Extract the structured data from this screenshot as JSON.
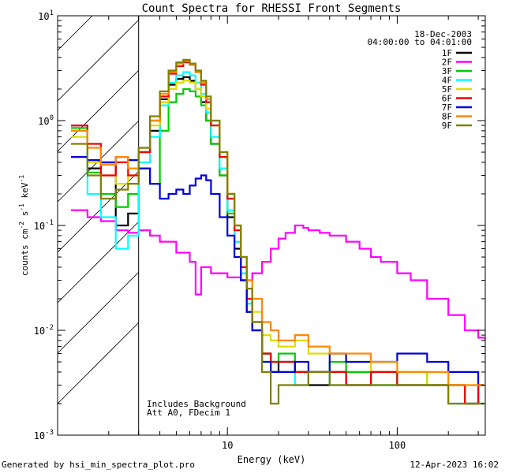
{
  "chart_data": {
    "type": "line",
    "title": "Count Spectra for RHESSI Front Segments",
    "xlabel": "Energy (keV)",
    "ylabel": "counts cm-2 s-1 keV-1",
    "xscale": "log",
    "yscale": "log",
    "xlim": [
      1,
      330
    ],
    "ylim": [
      0.001,
      10
    ],
    "x_ticks": [
      {
        "label": "10",
        "value": 10
      },
      {
        "label": "100",
        "value": 100
      }
    ],
    "y_ticks": [
      {
        "base": "10",
        "exp": "1",
        "value": 10
      },
      {
        "base": "10",
        "exp": "0",
        "value": 1
      },
      {
        "base": "10",
        "exp": "-1",
        "value": 0.1
      },
      {
        "base": "10",
        "exp": "-2",
        "value": 0.01
      },
      {
        "base": "10",
        "exp": "-3",
        "value": 0.001
      }
    ],
    "date": "18-Dec-2003",
    "time_range": "04:00:00 to 04:01:00",
    "annotation_line1": "Includes Background",
    "annotation_line2": "Att A0, FDecim 1",
    "excluded_region_keV": [
      1,
      3
    ],
    "series": [
      {
        "name": "1F",
        "color": "#000000",
        "x": [
          1.2,
          1.5,
          1.8,
          2.2,
          2.6,
          3,
          3.5,
          4,
          4.5,
          5,
          5.5,
          6,
          6.5,
          7,
          7.5,
          8,
          9,
          10,
          11,
          12,
          13,
          14,
          16,
          18,
          20,
          25,
          30,
          40,
          50,
          70,
          100,
          150,
          200,
          250,
          300
        ],
        "values": [
          0.9,
          0.35,
          0.38,
          0.1,
          0.13,
          0.5,
          0.8,
          1.6,
          2.2,
          2.5,
          2.6,
          2.4,
          2.0,
          1.5,
          1.0,
          0.6,
          0.3,
          0.12,
          0.06,
          0.03,
          0.015,
          0.01,
          0.006,
          0.004,
          0.005,
          0.004,
          0.003,
          0.004,
          0.003,
          0.004,
          0.003,
          0.003,
          0.003,
          0.002,
          0.003
        ]
      },
      {
        "name": "2F",
        "color": "#ff00ff",
        "x": [
          1.2,
          1.5,
          1.8,
          2.2,
          2.6,
          3,
          3.5,
          4,
          5,
          6,
          6.5,
          7,
          8,
          10,
          12,
          14,
          16,
          18,
          20,
          22,
          25,
          28,
          30,
          35,
          40,
          50,
          60,
          70,
          80,
          100,
          120,
          150,
          200,
          250,
          300,
          330
        ],
        "values": [
          0.14,
          0.12,
          0.11,
          0.09,
          0.085,
          0.09,
          0.08,
          0.07,
          0.055,
          0.045,
          0.022,
          0.04,
          0.035,
          0.032,
          0.03,
          0.035,
          0.045,
          0.06,
          0.075,
          0.085,
          0.1,
          0.095,
          0.09,
          0.085,
          0.08,
          0.07,
          0.06,
          0.05,
          0.045,
          0.035,
          0.03,
          0.02,
          0.014,
          0.01,
          0.0085,
          0.008
        ]
      },
      {
        "name": "3F",
        "color": "#00cc00",
        "x": [
          1.2,
          1.5,
          1.8,
          2.2,
          2.6,
          3,
          3.5,
          4,
          4.5,
          5,
          5.5,
          6,
          6.5,
          7,
          7.5,
          8,
          9,
          10,
          11,
          12,
          13,
          14,
          16,
          18,
          20,
          25,
          30,
          40,
          50,
          70,
          100,
          150,
          200,
          250,
          300
        ],
        "values": [
          0.85,
          0.32,
          0.2,
          0.15,
          0.2,
          0.35,
          0.25,
          0.8,
          1.5,
          1.8,
          2.0,
          1.9,
          1.7,
          1.4,
          1.0,
          0.6,
          0.3,
          0.13,
          0.07,
          0.035,
          0.018,
          0.01,
          0.006,
          0.005,
          0.006,
          0.004,
          0.004,
          0.005,
          0.004,
          0.003,
          0.004,
          0.003,
          0.003,
          0.002,
          0.002
        ]
      },
      {
        "name": "4F",
        "color": "#00ffff",
        "x": [
          1.2,
          1.5,
          1.8,
          2.2,
          2.6,
          3,
          3.5,
          4,
          4.5,
          5,
          5.5,
          6,
          6.5,
          7,
          7.5,
          8,
          9,
          10,
          11,
          12,
          13,
          14,
          16,
          18,
          20,
          25,
          30,
          40,
          50,
          70,
          100,
          150,
          200,
          250,
          300
        ],
        "values": [
          0.8,
          0.2,
          0.12,
          0.06,
          0.08,
          0.4,
          0.7,
          1.4,
          2.3,
          2.7,
          2.9,
          2.7,
          2.3,
          1.8,
          1.2,
          0.7,
          0.35,
          0.14,
          0.07,
          0.035,
          0.018,
          0.01,
          0.005,
          0.004,
          0.004,
          0.003,
          0.004,
          0.003,
          0.003,
          0.003,
          0.003,
          0.003,
          0.002,
          0.002,
          0.002
        ]
      },
      {
        "name": "5F",
        "color": "#dddd00",
        "x": [
          1.2,
          1.5,
          1.8,
          2.2,
          2.6,
          3,
          3.5,
          4,
          4.5,
          5,
          5.5,
          6,
          6.5,
          7,
          7.5,
          8,
          9,
          10,
          11,
          12,
          13,
          14,
          16,
          18,
          20,
          25,
          30,
          40,
          50,
          70,
          100,
          150,
          200,
          250,
          300
        ],
        "values": [
          0.7,
          0.4,
          0.3,
          0.25,
          0.3,
          0.5,
          0.9,
          1.5,
          2.0,
          2.3,
          2.4,
          2.3,
          2.0,
          1.7,
          1.3,
          0.9,
          0.45,
          0.2,
          0.1,
          0.05,
          0.025,
          0.015,
          0.009,
          0.008,
          0.007,
          0.008,
          0.006,
          0.006,
          0.005,
          0.004,
          0.004,
          0.003,
          0.003,
          0.003,
          0.003
        ]
      },
      {
        "name": "6F",
        "color": "#ee0000",
        "x": [
          1.2,
          1.5,
          1.8,
          2.2,
          2.6,
          3,
          3.5,
          4,
          4.5,
          5,
          5.5,
          6,
          6.5,
          7,
          7.5,
          8,
          9,
          10,
          11,
          12,
          13,
          14,
          16,
          18,
          20,
          25,
          30,
          40,
          50,
          70,
          100,
          150,
          200,
          250,
          300
        ],
        "values": [
          0.9,
          0.6,
          0.3,
          0.4,
          0.3,
          0.5,
          1.0,
          1.7,
          2.8,
          3.3,
          3.6,
          3.4,
          2.9,
          2.2,
          1.5,
          0.9,
          0.45,
          0.18,
          0.09,
          0.04,
          0.02,
          0.012,
          0.006,
          0.005,
          0.005,
          0.004,
          0.004,
          0.004,
          0.003,
          0.004,
          0.003,
          0.003,
          0.003,
          0.002,
          0.003
        ]
      },
      {
        "name": "7F",
        "color": "#0000dd",
        "x": [
          1.2,
          1.5,
          1.8,
          2.2,
          2.6,
          3,
          3.5,
          4,
          4.5,
          5,
          5.5,
          6,
          6.5,
          7,
          7.5,
          8,
          9,
          10,
          11,
          12,
          13,
          14,
          16,
          18,
          20,
          25,
          30,
          40,
          50,
          70,
          100,
          150,
          200,
          250,
          300
        ],
        "values": [
          0.45,
          0.42,
          0.4,
          0.45,
          0.42,
          0.35,
          0.25,
          0.18,
          0.2,
          0.22,
          0.2,
          0.24,
          0.28,
          0.3,
          0.27,
          0.2,
          0.12,
          0.08,
          0.05,
          0.03,
          0.015,
          0.01,
          0.005,
          0.004,
          0.004,
          0.005,
          0.004,
          0.006,
          0.005,
          0.005,
          0.006,
          0.005,
          0.004,
          0.004,
          0.003
        ]
      },
      {
        "name": "8F",
        "color": "#ff8800",
        "x": [
          1.2,
          1.5,
          1.8,
          2.2,
          2.6,
          3,
          3.5,
          4,
          4.5,
          5,
          5.5,
          6,
          6.5,
          7,
          7.5,
          8,
          9,
          10,
          11,
          12,
          13,
          14,
          16,
          18,
          20,
          25,
          30,
          40,
          50,
          70,
          100,
          150,
          200,
          250,
          300
        ],
        "values": [
          0.8,
          0.55,
          0.38,
          0.45,
          0.35,
          0.55,
          1.0,
          1.8,
          2.9,
          3.5,
          3.7,
          3.4,
          2.9,
          2.3,
          1.6,
          1.0,
          0.5,
          0.2,
          0.1,
          0.05,
          0.03,
          0.02,
          0.012,
          0.01,
          0.008,
          0.009,
          0.007,
          0.006,
          0.006,
          0.005,
          0.004,
          0.004,
          0.003,
          0.003,
          0.003
        ]
      },
      {
        "name": "9F",
        "color": "#808000",
        "x": [
          1.2,
          1.5,
          1.8,
          2.2,
          2.6,
          3,
          3.5,
          4,
          4.5,
          5,
          5.5,
          6,
          6.5,
          7,
          7.5,
          8,
          9,
          10,
          11,
          12,
          13,
          14,
          16,
          18,
          20,
          25,
          30,
          40,
          50,
          70,
          100,
          150,
          200,
          250,
          300
        ],
        "values": [
          0.6,
          0.3,
          0.18,
          0.22,
          0.25,
          0.55,
          1.1,
          1.9,
          3.0,
          3.6,
          3.8,
          3.5,
          3.0,
          2.4,
          1.7,
          1.0,
          0.5,
          0.2,
          0.1,
          0.05,
          0.025,
          0.012,
          0.004,
          0.002,
          0.003,
          0.003,
          0.004,
          0.003,
          0.003,
          0.003,
          0.003,
          0.003,
          0.002,
          0.002,
          0.002
        ]
      }
    ]
  },
  "footer": {
    "left": "Generated by hsi_min_spectra_plot.pro",
    "right": "12-Apr-2023 16:02"
  }
}
